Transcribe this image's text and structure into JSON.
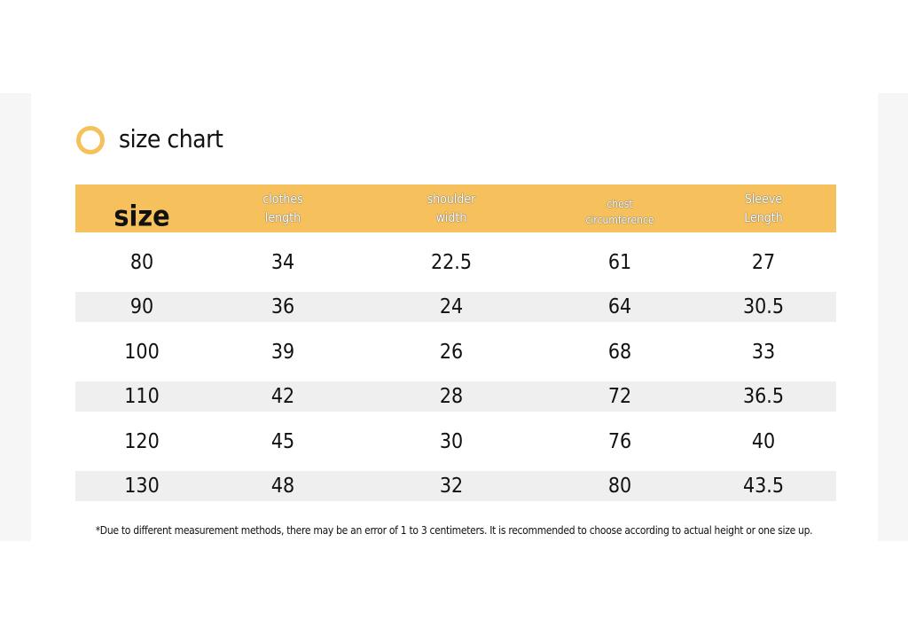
{
  "header": {
    "title": "size chart"
  },
  "table": {
    "columns": [
      [
        "size"
      ],
      [
        "clothes",
        "length"
      ],
      [
        "shoulder",
        "width"
      ],
      [
        "chest",
        "circumference"
      ],
      [
        "Sleeve",
        "Length"
      ]
    ],
    "rows": [
      [
        80,
        34,
        22.5,
        61,
        27
      ],
      [
        90,
        36,
        24,
        64,
        30.5
      ],
      [
        100,
        39,
        26,
        68,
        33
      ],
      [
        110,
        42,
        28,
        72,
        36.5
      ],
      [
        120,
        45,
        30,
        76,
        40
      ],
      [
        130,
        48,
        32,
        80,
        43.5
      ]
    ]
  },
  "footnote": "*Due to different measurement methods, there may be an error of 1 to 3 centimeters. It is recommended to choose according to actual height or one size up."
}
